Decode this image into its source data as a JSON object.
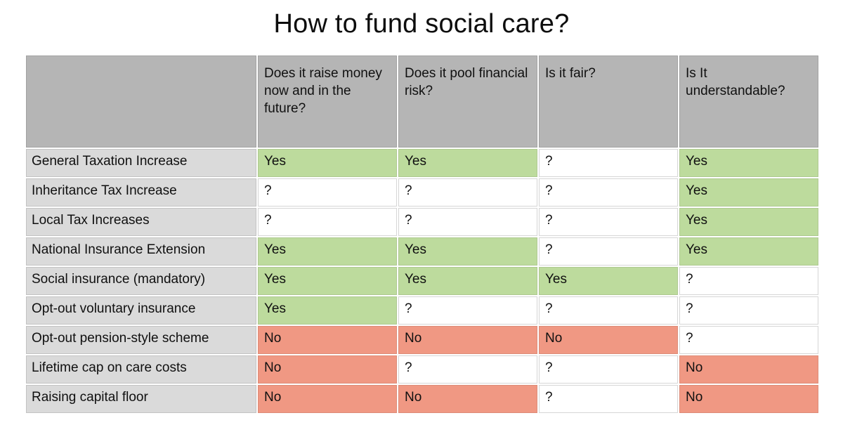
{
  "title": "How to fund social care?",
  "colors": {
    "yes_bg": "#bddb9d",
    "no_bg": "#f09883",
    "header_bg": "#b5b5b5",
    "label_bg": "#dadada"
  },
  "table": {
    "columns": [
      "",
      "Does it raise money now and in the future?",
      "Does it pool financial risk?",
      "Is it fair?",
      "Is It understandable?"
    ],
    "rows": [
      {
        "label": "General Taxation Increase",
        "cells": [
          {
            "text": "Yes",
            "state": "yes"
          },
          {
            "text": "Yes",
            "state": "yes"
          },
          {
            "text": "?",
            "state": "none"
          },
          {
            "text": "Yes",
            "state": "yes"
          }
        ]
      },
      {
        "label": "Inheritance Tax Increase",
        "cells": [
          {
            "text": "?",
            "state": "none"
          },
          {
            "text": "?",
            "state": "none"
          },
          {
            "text": "?",
            "state": "none"
          },
          {
            "text": "Yes",
            "state": "yes"
          }
        ]
      },
      {
        "label": "Local Tax Increases",
        "cells": [
          {
            "text": "?",
            "state": "none"
          },
          {
            "text": "?",
            "state": "none"
          },
          {
            "text": "?",
            "state": "none"
          },
          {
            "text": "Yes",
            "state": "yes"
          }
        ]
      },
      {
        "label": "National Insurance Extension",
        "cells": [
          {
            "text": "Yes",
            "state": "yes"
          },
          {
            "text": "Yes",
            "state": "yes"
          },
          {
            "text": "?",
            "state": "none"
          },
          {
            "text": "Yes",
            "state": "yes"
          }
        ]
      },
      {
        "label": "Social insurance (mandatory)",
        "cells": [
          {
            "text": "Yes",
            "state": "yes"
          },
          {
            "text": "Yes",
            "state": "yes"
          },
          {
            "text": "Yes",
            "state": "yes"
          },
          {
            "text": "?",
            "state": "none"
          }
        ]
      },
      {
        "label": "Opt-out voluntary insurance",
        "cells": [
          {
            "text": "Yes",
            "state": "yes"
          },
          {
            "text": "?",
            "state": "none"
          },
          {
            "text": "?",
            "state": "none"
          },
          {
            "text": "?",
            "state": "none"
          }
        ]
      },
      {
        "label": "Opt-out pension-style scheme",
        "cells": [
          {
            "text": "No",
            "state": "no"
          },
          {
            "text": "No",
            "state": "no"
          },
          {
            "text": "No",
            "state": "no"
          },
          {
            "text": "?",
            "state": "none"
          }
        ]
      },
      {
        "label": "Lifetime cap on care costs",
        "cells": [
          {
            "text": "No",
            "state": "no"
          },
          {
            "text": "?",
            "state": "none"
          },
          {
            "text": "?",
            "state": "none"
          },
          {
            "text": "No",
            "state": "no"
          }
        ]
      },
      {
        "label": "Raising capital floor",
        "cells": [
          {
            "text": "No",
            "state": "no"
          },
          {
            "text": "No",
            "state": "no"
          },
          {
            "text": "?",
            "state": "none"
          },
          {
            "text": "No",
            "state": "no"
          }
        ]
      }
    ]
  }
}
